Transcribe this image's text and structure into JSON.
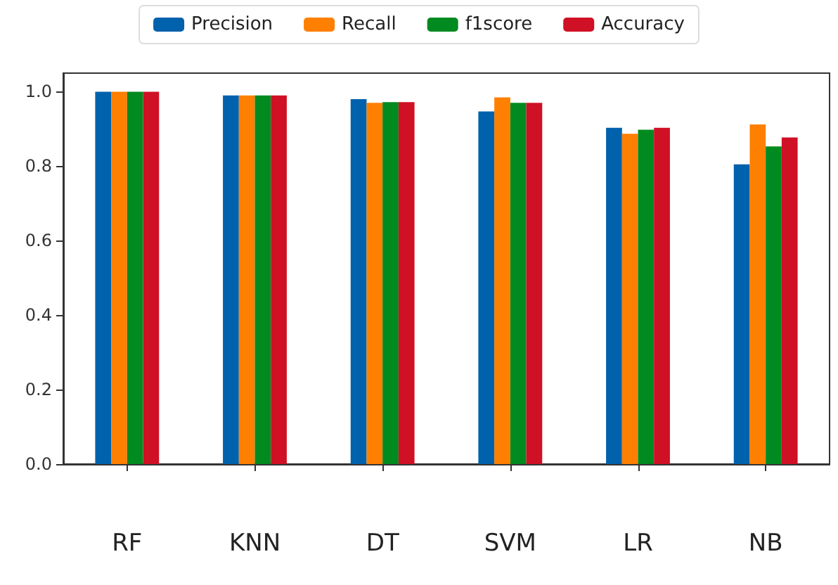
{
  "chart_data": {
    "type": "bar",
    "categories": [
      "RF",
      "KNN",
      "DT",
      "SVM",
      "LR",
      "NB"
    ],
    "series": [
      {
        "name": "Precision",
        "color": "#0061ac",
        "values": [
          1.0,
          0.99,
          0.98,
          0.947,
          0.903,
          0.805
        ]
      },
      {
        "name": "Recall",
        "color": "#ff7f00",
        "values": [
          1.0,
          0.99,
          0.97,
          0.985,
          0.887,
          0.912
        ]
      },
      {
        "name": "f1score",
        "color": "#008a1f",
        "values": [
          1.0,
          0.99,
          0.972,
          0.97,
          0.898,
          0.853
        ]
      },
      {
        "name": "Accuracy",
        "color": "#d01024",
        "values": [
          1.0,
          0.99,
          0.972,
          0.97,
          0.903,
          0.877
        ]
      }
    ],
    "ylim": [
      0,
      1.05
    ],
    "yticks": [
      {
        "value": 0,
        "label": "0.0"
      },
      0.2,
      0.4,
      0.6,
      0.8,
      {
        "value": 1,
        "label": "1.0"
      }
    ],
    "grid": false,
    "legend": "top"
  }
}
